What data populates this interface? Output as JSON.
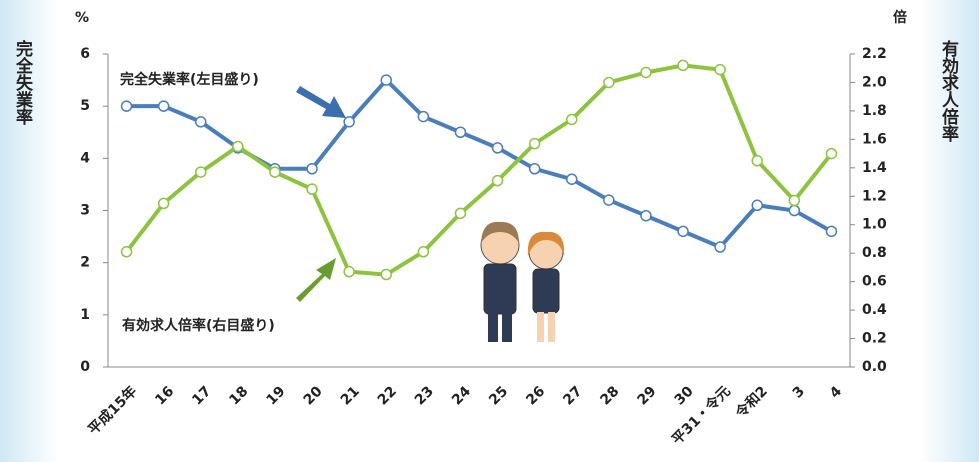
{
  "chart_data": {
    "type": "line",
    "y_label": "完全失業率",
    "y_unit": "%",
    "y2_label": "有効求人倍率",
    "y2_unit": "倍",
    "annotations": [
      "完全失業率(左目盛り)",
      "有効求人倍率(右目盛り)"
    ],
    "categories": [
      "平成15年",
      "16",
      "17",
      "18",
      "19",
      "20",
      "21",
      "22",
      "23",
      "24",
      "25",
      "26",
      "27",
      "28",
      "29",
      "30",
      "平31・令元",
      "令和2",
      "3",
      "4"
    ],
    "series": [
      {
        "name": "完全失業率",
        "color": "#4a7ebb",
        "values": [
          5.0,
          5.0,
          4.7,
          4.2,
          3.8,
          3.8,
          4.7,
          5.5,
          4.8,
          4.5,
          4.2,
          3.8,
          3.6,
          3.2,
          2.9,
          2.6,
          2.3,
          3.1,
          3.0,
          2.6
        ]
      },
      {
        "name": "有効求人倍率",
        "color": "#8dc43f",
        "axis": "y2",
        "values": [
          0.81,
          1.15,
          1.37,
          1.55,
          1.37,
          1.25,
          0.67,
          0.65,
          0.81,
          1.08,
          1.31,
          1.57,
          1.74,
          2.0,
          2.07,
          2.12,
          2.09,
          1.45,
          1.17,
          1.5
        ]
      }
    ],
    "ylim": [
      0,
      6
    ],
    "yticks": [
      0,
      1,
      2,
      3,
      4,
      5,
      6
    ],
    "y2lim": [
      0,
      2.2
    ],
    "y2ticks": [
      {
        "value": 0,
        "label": "0.0"
      },
      0.2,
      0.4,
      0.6,
      0.8,
      {
        "value": 1,
        "label": "1.0"
      },
      1.2,
      1.4,
      1.6,
      1.8,
      {
        "value": 2,
        "label": "2.0"
      },
      2.2
    ]
  }
}
